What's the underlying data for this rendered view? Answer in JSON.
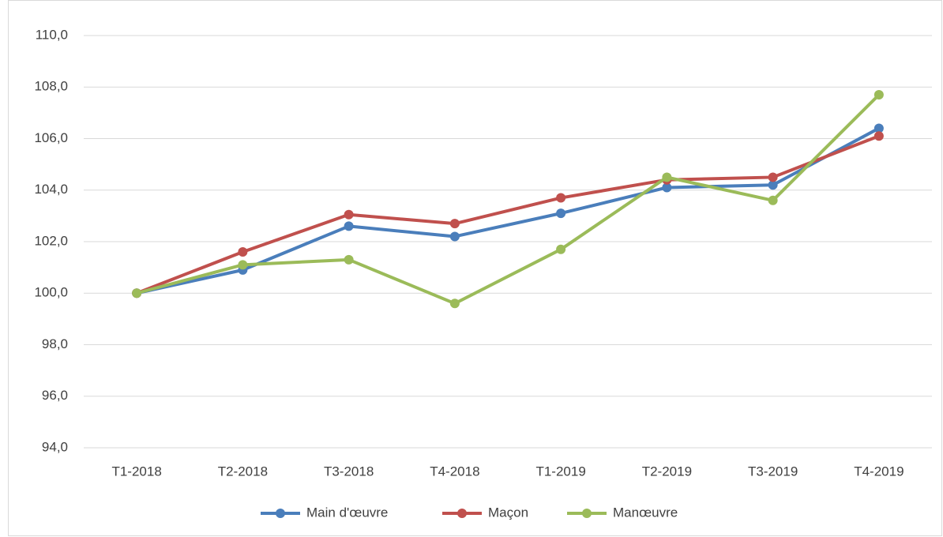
{
  "chart_data": {
    "type": "line",
    "categories": [
      "T1-2018",
      "T2-2018",
      "T3-2018",
      "T4-2018",
      "T1-2019",
      "T2-2019",
      "T3-2019",
      "T4-2019"
    ],
    "series": [
      {
        "name": "Main d'œuvre",
        "color": "#4a7ebb",
        "values": [
          100.0,
          100.9,
          102.6,
          102.2,
          103.1,
          104.1,
          104.2,
          106.4
        ]
      },
      {
        "name": "Maçon",
        "color": "#c0504d",
        "values": [
          100.0,
          101.6,
          103.05,
          102.7,
          103.7,
          104.4,
          104.5,
          106.1
        ]
      },
      {
        "name": "Manœuvre",
        "color": "#9bbb59",
        "values": [
          100.0,
          101.1,
          101.3,
          99.6,
          101.7,
          104.5,
          103.6,
          107.7
        ]
      }
    ],
    "ylim": [
      94,
      110
    ],
    "yticks": [
      {
        "value": 94,
        "label": "94,0"
      },
      {
        "value": 96,
        "label": "96,0"
      },
      {
        "value": 98,
        "label": "98,0"
      },
      {
        "value": 100,
        "label": "100,0"
      },
      {
        "value": 102,
        "label": "102,0"
      },
      {
        "value": 104,
        "label": "104,0"
      },
      {
        "value": 106,
        "label": "106,0"
      },
      {
        "value": 108,
        "label": "108,0"
      },
      {
        "value": 110,
        "label": "110,0"
      }
    ],
    "grid": true,
    "legend": "bottom"
  }
}
